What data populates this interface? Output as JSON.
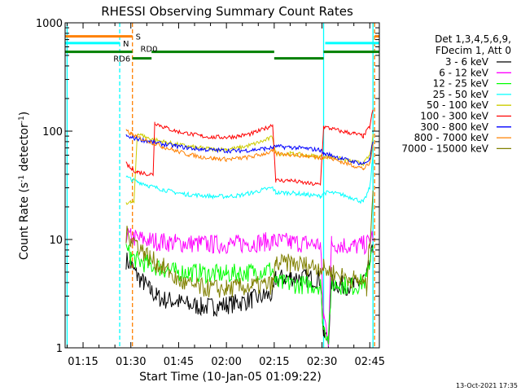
{
  "chart_data": {
    "type": "line",
    "title": "RHESSI Observing Summary Count Rates",
    "xlabel": "Start Time (10-Jan-05 01:09:22)",
    "ylabel_main": "Count Rate (s",
    "ylabel_sup1": "-1",
    "ylabel_mid": " detector",
    "ylabel_sup2": "-1",
    "ylabel_end": ")",
    "yscale": "log",
    "ylim": [
      1,
      1000
    ],
    "xlim": [
      69.37,
      168.0
    ],
    "x_ticks": [
      {
        "v": 75,
        "label": "01:15"
      },
      {
        "v": 90,
        "label": "01:30"
      },
      {
        "v": 105,
        "label": "01:45"
      },
      {
        "v": 120,
        "label": "02:00"
      },
      {
        "v": 135,
        "label": "02:15"
      },
      {
        "v": 150,
        "label": "02:30"
      },
      {
        "v": 165,
        "label": "02:45"
      }
    ],
    "y_ticks": [
      {
        "v": 1,
        "label": "1"
      },
      {
        "v": 10,
        "label": "10"
      },
      {
        "v": 100,
        "label": "100"
      },
      {
        "v": 1000,
        "label": "1000"
      }
    ],
    "legend_header": [
      "Det 1,3,4,5,6,9,",
      "FDecim 1, Att 0"
    ],
    "series": [
      {
        "name": "3 - 6 keV",
        "color": "#000000",
        "points": [
          [
            88.5,
            6.5
          ],
          [
            90,
            5.8
          ],
          [
            92,
            4.6
          ],
          [
            94,
            4.0
          ],
          [
            96,
            3.4
          ],
          [
            98,
            3.0
          ],
          [
            100,
            2.8
          ],
          [
            104,
            2.7
          ],
          [
            108,
            2.5
          ],
          [
            112,
            2.4
          ],
          [
            116,
            2.4
          ],
          [
            120,
            2.5
          ],
          [
            124,
            2.6
          ],
          [
            128,
            2.8
          ],
          [
            132,
            3.0
          ],
          [
            134.5,
            3.1
          ],
          [
            135.5,
            4.3
          ],
          [
            140,
            4.5
          ],
          [
            145,
            4.4
          ],
          [
            149.5,
            4.3
          ],
          [
            150.5,
            1.3
          ],
          [
            152,
            1.2
          ],
          [
            153,
            4.0
          ],
          [
            156,
            3.8
          ],
          [
            160,
            3.7
          ],
          [
            164,
            4.5
          ],
          [
            166,
            8
          ]
        ]
      },
      {
        "name": "6 - 12 keV",
        "color": "#ff00ff",
        "points": [
          [
            88.5,
            11
          ],
          [
            90,
            10.5
          ],
          [
            92,
            10.2
          ],
          [
            96,
            9.8
          ],
          [
            100,
            9.5
          ],
          [
            104,
            9.3
          ],
          [
            108,
            9.2
          ],
          [
            112,
            9.1
          ],
          [
            116,
            9.0
          ],
          [
            120,
            9.0
          ],
          [
            124,
            9.1
          ],
          [
            128,
            9.3
          ],
          [
            132,
            9.5
          ],
          [
            134.5,
            9.6
          ],
          [
            135.5,
            9.6
          ],
          [
            140,
            9.4
          ],
          [
            145,
            9.2
          ],
          [
            149.5,
            9.0
          ],
          [
            150.5,
            2.0
          ],
          [
            152,
            1.2
          ],
          [
            153,
            9.2
          ],
          [
            156,
            9.0
          ],
          [
            160,
            8.6
          ],
          [
            164,
            9.0
          ],
          [
            166,
            11
          ]
        ]
      },
      {
        "name": "12 - 25 keV",
        "color": "#00ff00",
        "points": [
          [
            88.5,
            8
          ],
          [
            90,
            7.0
          ],
          [
            92,
            6.4
          ],
          [
            96,
            5.8
          ],
          [
            100,
            5.4
          ],
          [
            104,
            5.0
          ],
          [
            108,
            5.0
          ],
          [
            112,
            4.9
          ],
          [
            116,
            4.8
          ],
          [
            120,
            4.8
          ],
          [
            124,
            4.9
          ],
          [
            128,
            5.0
          ],
          [
            132,
            5.2
          ],
          [
            134.5,
            5.3
          ],
          [
            135.5,
            3.9
          ],
          [
            140,
            3.9
          ],
          [
            145,
            3.8
          ],
          [
            149.5,
            3.8
          ],
          [
            150.5,
            1.5
          ],
          [
            152,
            1.3
          ],
          [
            153,
            3.9
          ],
          [
            156,
            3.8
          ],
          [
            160,
            3.7
          ],
          [
            164,
            4.2
          ],
          [
            166,
            10
          ]
        ]
      },
      {
        "name": "25 - 50 keV",
        "color": "#00ffff",
        "points": [
          [
            88.5,
            38
          ],
          [
            90,
            36
          ],
          [
            92,
            34
          ],
          [
            94,
            33
          ],
          [
            96,
            31
          ],
          [
            100,
            29
          ],
          [
            104,
            27
          ],
          [
            108,
            26
          ],
          [
            112,
            25.5
          ],
          [
            116,
            25
          ],
          [
            120,
            25
          ],
          [
            124,
            25.5
          ],
          [
            128,
            27
          ],
          [
            132,
            29
          ],
          [
            134.5,
            30
          ],
          [
            135.5,
            27
          ],
          [
            140,
            27
          ],
          [
            145,
            26
          ],
          [
            149.5,
            25
          ],
          [
            150.5,
            27
          ],
          [
            153,
            27
          ],
          [
            156,
            26
          ],
          [
            160,
            24
          ],
          [
            163,
            22
          ],
          [
            165,
            30
          ],
          [
            166,
            60
          ]
        ]
      },
      {
        "name": "50 - 100 keV",
        "color": "#cccc00",
        "points": [
          [
            88.5,
            22
          ],
          [
            90,
            22
          ],
          [
            91,
            22
          ],
          [
            91.5,
            45
          ],
          [
            92,
            95
          ],
          [
            94,
            90
          ],
          [
            96,
            85
          ],
          [
            100,
            80
          ],
          [
            104,
            76
          ],
          [
            108,
            72
          ],
          [
            112,
            70
          ],
          [
            116,
            68
          ],
          [
            120,
            68
          ],
          [
            124,
            70
          ],
          [
            128,
            75
          ],
          [
            132,
            82
          ],
          [
            134.5,
            88
          ],
          [
            135.5,
            62
          ],
          [
            140,
            62
          ],
          [
            145,
            60
          ],
          [
            149.5,
            58
          ],
          [
            150.5,
            58
          ],
          [
            153,
            58
          ],
          [
            156,
            55
          ],
          [
            160,
            52
          ],
          [
            163,
            50
          ],
          [
            165,
            60
          ],
          [
            166,
            90
          ]
        ]
      },
      {
        "name": "100 - 300 keV",
        "color": "#ff0000",
        "points": [
          [
            88.5,
            50
          ],
          [
            90,
            45
          ],
          [
            92,
            42
          ],
          [
            96,
            40
          ],
          [
            97,
            40
          ],
          [
            97.5,
            120
          ],
          [
            100,
            110
          ],
          [
            104,
            100
          ],
          [
            108,
            95
          ],
          [
            112,
            90
          ],
          [
            116,
            88
          ],
          [
            120,
            88
          ],
          [
            124,
            90
          ],
          [
            128,
            95
          ],
          [
            132,
            105
          ],
          [
            134.5,
            115
          ],
          [
            135.5,
            35
          ],
          [
            140,
            35
          ],
          [
            145,
            33
          ],
          [
            149.5,
            32
          ],
          [
            150.5,
            110
          ],
          [
            153,
            105
          ],
          [
            156,
            100
          ],
          [
            160,
            95
          ],
          [
            163,
            90
          ],
          [
            165,
            110
          ],
          [
            166,
            160
          ]
        ]
      },
      {
        "name": "300 - 800 keV",
        "color": "#0000ff",
        "points": [
          [
            88.5,
            90
          ],
          [
            90,
            87
          ],
          [
            92,
            85
          ],
          [
            96,
            80
          ],
          [
            100,
            76
          ],
          [
            104,
            73
          ],
          [
            108,
            70
          ],
          [
            112,
            68
          ],
          [
            116,
            67
          ],
          [
            120,
            66
          ],
          [
            124,
            66
          ],
          [
            128,
            67
          ],
          [
            132,
            69
          ],
          [
            134.5,
            70
          ],
          [
            135.5,
            72
          ],
          [
            140,
            71
          ],
          [
            145,
            69
          ],
          [
            149.5,
            67
          ],
          [
            150.5,
            62
          ],
          [
            153,
            60
          ],
          [
            156,
            56
          ],
          [
            160,
            52
          ],
          [
            163,
            50
          ],
          [
            165,
            55
          ],
          [
            166,
            80
          ]
        ]
      },
      {
        "name": "800 - 7000 keV",
        "color": "#ff8000",
        "points": [
          [
            88.5,
            100
          ],
          [
            90,
            95
          ],
          [
            92,
            88
          ],
          [
            96,
            80
          ],
          [
            100,
            72
          ],
          [
            104,
            66
          ],
          [
            108,
            61
          ],
          [
            112,
            58
          ],
          [
            116,
            56
          ],
          [
            120,
            55
          ],
          [
            124,
            56
          ],
          [
            128,
            58
          ],
          [
            132,
            62
          ],
          [
            134.5,
            65
          ],
          [
            135.5,
            62
          ],
          [
            140,
            61
          ],
          [
            145,
            59
          ],
          [
            149.5,
            57
          ],
          [
            150.5,
            58
          ],
          [
            153,
            56
          ],
          [
            156,
            52
          ],
          [
            160,
            48
          ],
          [
            163,
            45
          ],
          [
            165,
            50
          ],
          [
            166,
            75
          ]
        ]
      },
      {
        "name": "7000 - 15000 keV",
        "color": "#808000",
        "points": [
          [
            88.5,
            11
          ],
          [
            90,
            10.5
          ],
          [
            92,
            9.2
          ],
          [
            94,
            7.6
          ],
          [
            96,
            6.8
          ],
          [
            98,
            6.0
          ],
          [
            100,
            5.6
          ],
          [
            102,
            5.0
          ],
          [
            104,
            4.4
          ],
          [
            106,
            4.0
          ],
          [
            108,
            3.8
          ],
          [
            112,
            3.6
          ],
          [
            116,
            3.5
          ],
          [
            120,
            3.5
          ],
          [
            124,
            3.6
          ],
          [
            128,
            3.7
          ],
          [
            132,
            3.8
          ],
          [
            134.5,
            3.8
          ],
          [
            135.5,
            6.0
          ],
          [
            140,
            6.0
          ],
          [
            145,
            5.8
          ],
          [
            149.5,
            5.6
          ],
          [
            150.5,
            5.4
          ],
          [
            153,
            5.0
          ],
          [
            156,
            4.6
          ],
          [
            160,
            4.3
          ],
          [
            163,
            4.0
          ],
          [
            164,
            3.5
          ],
          [
            165,
            10
          ],
          [
            166,
            30
          ]
        ]
      }
    ],
    "status_bars": [
      {
        "label": "S",
        "color": "#ff8000",
        "value": 750,
        "segments": [
          [
            69.4,
            90.5
          ],
          [
            166.5,
            168
          ]
        ]
      },
      {
        "label": "N",
        "color": "#00ffff",
        "value": 650,
        "segments": [
          [
            69.4,
            86.5
          ],
          [
            151,
            168
          ]
        ]
      },
      {
        "label": "RD0",
        "color": "#008000",
        "value": 540,
        "segments": [
          [
            69.4,
            90.5
          ],
          [
            90.5,
            96.5
          ],
          [
            96.5,
            135
          ],
          [
            135,
            150.5
          ],
          [
            150.5,
            168
          ]
        ]
      }
    ],
    "status_labels": [
      {
        "text": "RD6",
        "x": 84.5,
        "y": 470,
        "color": "#008000"
      },
      {
        "text": "RD0",
        "x": 93,
        "y": 580,
        "color": "#008000"
      }
    ],
    "vlines": [
      {
        "x": 70,
        "color": "#00ffff",
        "dash": false
      },
      {
        "x": 86.5,
        "color": "#00ffff",
        "dash": true
      },
      {
        "x": 90.5,
        "color": "#ff8000",
        "dash": true
      },
      {
        "x": 150.5,
        "color": "#00ffff",
        "dash": false
      },
      {
        "x": 166,
        "color": "#00ffff",
        "dash": false
      },
      {
        "x": 166.5,
        "color": "#ff8000",
        "dash": true
      }
    ],
    "footer_date": "13-Oct-2021 17:35"
  }
}
